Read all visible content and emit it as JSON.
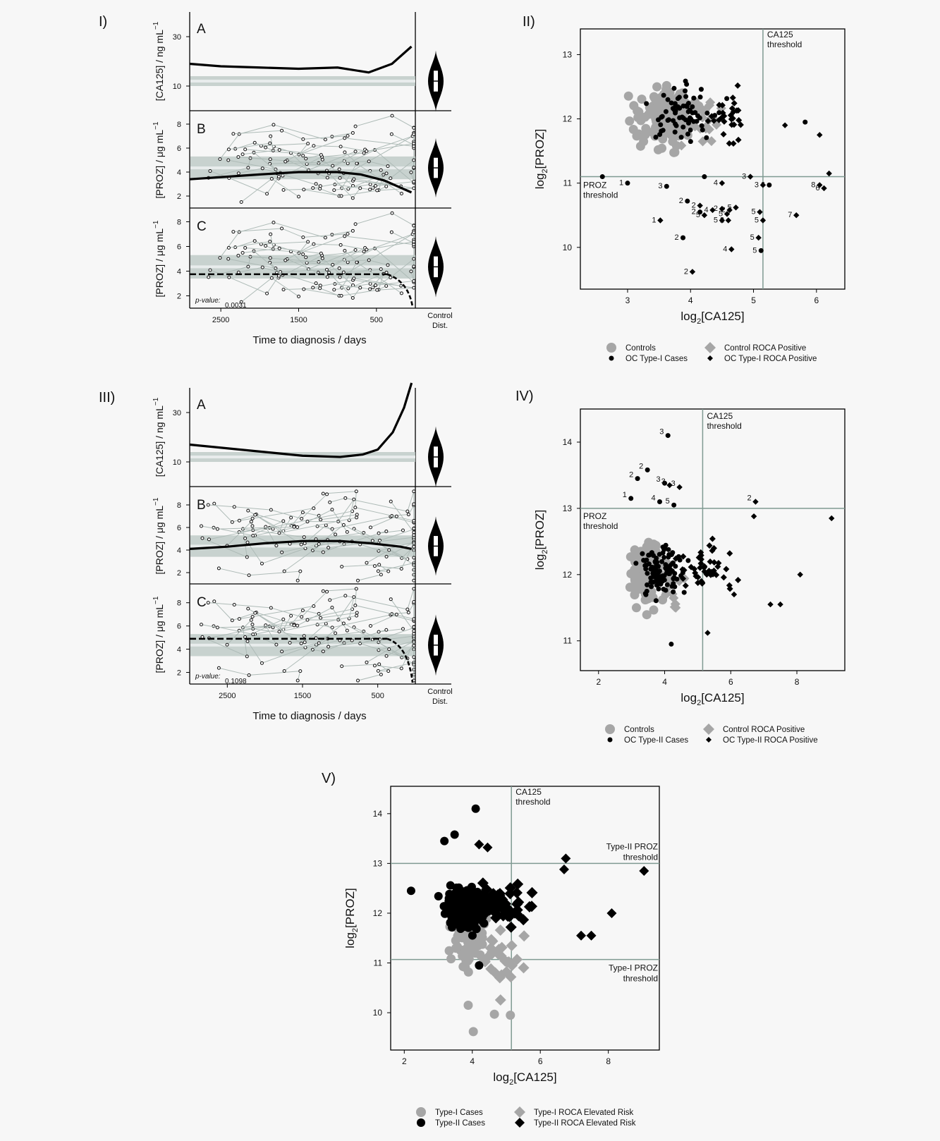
{
  "figure": {
    "panel_labels": [
      "I)",
      "II)",
      "III)",
      "IV)",
      "V)"
    ],
    "subpanel_labels": [
      "A",
      "B",
      "C"
    ],
    "x_axis_label": "Time to diagnosis / days",
    "y_labels": {
      "ca125": "[CA125] / ng mL",
      "proz": "[PROZ] / μg mL",
      "sup": "−1"
    },
    "control_dist_label": [
      "Control",
      "Dist."
    ],
    "pvalue_label": "p-value:",
    "scatter_x_label": "log",
    "scatter_y_label": "log",
    "log_sub": "2",
    "ca125_bracket": "[CA125]",
    "proz_bracket": "[PROZ]",
    "thresholds": {
      "ca125": [
        "CA125",
        "threshold"
      ],
      "proz": [
        "PROZ",
        "threshold"
      ],
      "type2_proz": [
        "Type-II PROZ",
        "threshold"
      ],
      "type1_proz": [
        "Type-I PROZ",
        "threshold"
      ]
    },
    "legends": {
      "II": [
        "Controls",
        "Control ROCA Positive",
        "OC Type-I Cases",
        "OC Type-I ROCA Positive"
      ],
      "IV": [
        "Controls",
        "Control ROCA Positive",
        "OC Type-II Cases",
        "OC Type-II ROCA Positive"
      ],
      "V": [
        "Type-I Cases",
        "Type-I ROCA Elevated Risk",
        "Type-II Cases",
        "Type-II ROCA Elevated Risk"
      ]
    },
    "colors": {
      "gray": "#a6a6a6",
      "black": "#111111",
      "band": "#bfcbc8",
      "thresh": "#7f9a92",
      "thin": "#aebbb7"
    }
  },
  "chart_data": [
    {
      "panel": "I",
      "type": "line",
      "x_range_days": [
        2900,
        0
      ],
      "x_ticks": [
        2500,
        1500,
        500
      ],
      "A": {
        "ylabel": "[CA125] / ng mL-1",
        "y_ticks": [
          10,
          30
        ],
        "y_range": [
          0,
          40
        ],
        "curve": [
          [
            2900,
            19
          ],
          [
            2500,
            18
          ],
          [
            2000,
            17.5
          ],
          [
            1500,
            17
          ],
          [
            1000,
            17.5
          ],
          [
            600,
            15.5
          ],
          [
            300,
            19
          ],
          [
            50,
            26
          ]
        ],
        "control_band": [
          10,
          14
        ]
      },
      "B": {
        "ylabel": "[PROZ] / μg mL-1",
        "y_ticks": [
          2,
          4,
          6,
          8
        ],
        "y_range": [
          1,
          9
        ],
        "curve": [
          [
            2900,
            3.4
          ],
          [
            2000,
            3.8
          ],
          [
            1500,
            4.0
          ],
          [
            1000,
            4.0
          ],
          [
            700,
            3.8
          ],
          [
            400,
            3.3
          ],
          [
            50,
            2.3
          ]
        ],
        "control_band": [
          3.4,
          5.3
        ]
      },
      "C": {
        "ylabel": "[PROZ] / μg mL-1",
        "y_ticks": [
          2,
          4,
          6,
          8
        ],
        "y_range": [
          1,
          9
        ],
        "level": 3.75,
        "p_value": "0.0031"
      }
    },
    {
      "panel": "III",
      "type": "line",
      "x_range_days": [
        3000,
        0
      ],
      "x_ticks": [
        2500,
        1500,
        500
      ],
      "A": {
        "ylabel": "[CA125] / ng mL-1",
        "y_ticks": [
          10,
          30
        ],
        "y_range": [
          0,
          40
        ],
        "curve": [
          [
            3000,
            17
          ],
          [
            2500,
            15.5
          ],
          [
            2000,
            14
          ],
          [
            1500,
            12.5
          ],
          [
            1000,
            12
          ],
          [
            700,
            13
          ],
          [
            500,
            15
          ],
          [
            300,
            22
          ],
          [
            150,
            32
          ],
          [
            50,
            42
          ]
        ],
        "control_band": [
          10,
          14
        ]
      },
      "B": {
        "ylabel": "[PROZ] / μg mL-1",
        "y_ticks": [
          2,
          4,
          6,
          8
        ],
        "y_range": [
          1,
          9.5
        ],
        "curve": [
          [
            3000,
            4.1
          ],
          [
            2500,
            4.3
          ],
          [
            2000,
            4.6
          ],
          [
            1500,
            4.8
          ],
          [
            1000,
            4.8
          ],
          [
            600,
            4.6
          ],
          [
            200,
            4.3
          ],
          [
            50,
            4.1
          ]
        ],
        "control_band": [
          3.4,
          5.3
        ]
      },
      "C": {
        "ylabel": "[PROZ] / μg mL-1",
        "y_ticks": [
          2,
          4,
          6,
          8
        ],
        "y_range": [
          1,
          9.5
        ],
        "level": 4.9,
        "p_value": "0.1098"
      }
    },
    {
      "panel": "II",
      "type": "scatter",
      "xlabel": "log2[CA125]",
      "ylabel": "log2[PROZ]",
      "x_ticks": [
        3,
        4,
        5,
        6
      ],
      "y_ticks": [
        10,
        11,
        12,
        13
      ],
      "xlim": [
        2.25,
        6.45
      ],
      "ylim": [
        9.35,
        13.4
      ],
      "ca125_threshold": 5.15,
      "proz_threshold": 11.1,
      "cases": [
        {
          "x": 2.6,
          "y": 11.1,
          "s": "c"
        },
        {
          "x": 3.0,
          "y": 11.0,
          "s": "c",
          "n": "1"
        },
        {
          "x": 3.62,
          "y": 10.95,
          "s": "c",
          "n": "3"
        },
        {
          "x": 4.22,
          "y": 11.1,
          "s": "c"
        },
        {
          "x": 4.5,
          "y": 11.0,
          "s": "d",
          "n": "4"
        },
        {
          "x": 4.95,
          "y": 11.1,
          "s": "d",
          "n": "3"
        },
        {
          "x": 5.15,
          "y": 10.97,
          "s": "d",
          "n": "3"
        },
        {
          "x": 5.25,
          "y": 10.97,
          "s": "c",
          "n": "6"
        },
        {
          "x": 3.95,
          "y": 10.72,
          "s": "c",
          "n": "2"
        },
        {
          "x": 4.15,
          "y": 10.65,
          "s": "d",
          "n": "2"
        },
        {
          "x": 4.15,
          "y": 10.55,
          "s": "c",
          "n": "2"
        },
        {
          "x": 4.35,
          "y": 10.58,
          "s": "d",
          "n": "4"
        },
        {
          "x": 4.5,
          "y": 10.6,
          "s": "d",
          "n": "2"
        },
        {
          "x": 4.62,
          "y": 10.58,
          "s": "d",
          "n": "2"
        },
        {
          "x": 4.72,
          "y": 10.62,
          "s": "d",
          "n": "5"
        },
        {
          "x": 4.58,
          "y": 10.52,
          "s": "d",
          "n": "5"
        },
        {
          "x": 4.22,
          "y": 10.5,
          "s": "d",
          "n": "5"
        },
        {
          "x": 4.5,
          "y": 10.42,
          "s": "d",
          "n": "5"
        },
        {
          "x": 4.6,
          "y": 10.42,
          "s": "d",
          "n": "2"
        },
        {
          "x": 3.52,
          "y": 10.42,
          "s": "d",
          "n": "1"
        },
        {
          "x": 5.1,
          "y": 10.55,
          "s": "d",
          "n": "5"
        },
        {
          "x": 5.15,
          "y": 10.42,
          "s": "d",
          "n": "5"
        },
        {
          "x": 5.68,
          "y": 10.5,
          "s": "d",
          "n": "7"
        },
        {
          "x": 3.88,
          "y": 10.15,
          "s": "c",
          "n": "2"
        },
        {
          "x": 5.08,
          "y": 10.15,
          "s": "d",
          "n": "5"
        },
        {
          "x": 5.12,
          "y": 9.95,
          "s": "c",
          "n": "5"
        },
        {
          "x": 4.65,
          "y": 9.97,
          "s": "d",
          "n": "4"
        },
        {
          "x": 4.03,
          "y": 9.62,
          "s": "d",
          "n": "2"
        },
        {
          "x": 6.05,
          "y": 10.97,
          "s": "d",
          "n": "8"
        },
        {
          "x": 6.12,
          "y": 10.92,
          "s": "d",
          "n": "6"
        },
        {
          "x": 6.2,
          "y": 11.15,
          "s": "d"
        },
        {
          "x": 6.05,
          "y": 11.75,
          "s": "d"
        },
        {
          "x": 5.82,
          "y": 11.95,
          "s": "c"
        },
        {
          "x": 5.5,
          "y": 11.9,
          "s": "d"
        }
      ]
    },
    {
      "panel": "IV",
      "type": "scatter",
      "xlabel": "log2[CA125]",
      "ylabel": "log2[PROZ]",
      "x_ticks": [
        2,
        4,
        6,
        8
      ],
      "y_ticks": [
        11,
        12,
        13,
        14
      ],
      "xlim": [
        1.45,
        9.45
      ],
      "ylim": [
        10.55,
        14.5
      ],
      "ca125_threshold": 5.15,
      "proz_threshold": 13.0,
      "cases": [
        {
          "x": 4.1,
          "y": 14.1,
          "s": "c",
          "n": "3"
        },
        {
          "x": 3.48,
          "y": 13.58,
          "s": "c",
          "n": "2"
        },
        {
          "x": 3.18,
          "y": 13.45,
          "s": "c",
          "n": "2"
        },
        {
          "x": 4.0,
          "y": 13.38,
          "s": "c",
          "n": "3"
        },
        {
          "x": 4.15,
          "y": 13.35,
          "s": "d",
          "n": "3"
        },
        {
          "x": 4.45,
          "y": 13.32,
          "s": "d",
          "n": "3"
        },
        {
          "x": 2.98,
          "y": 13.15,
          "s": "c",
          "n": "1"
        },
        {
          "x": 3.85,
          "y": 13.1,
          "s": "c",
          "n": "4"
        },
        {
          "x": 4.28,
          "y": 13.05,
          "s": "c",
          "n": "5"
        },
        {
          "x": 6.75,
          "y": 13.1,
          "s": "d",
          "n": "2"
        },
        {
          "x": 6.7,
          "y": 12.88,
          "s": "d"
        },
        {
          "x": 9.05,
          "y": 12.85,
          "s": "d"
        },
        {
          "x": 8.1,
          "y": 12.0,
          "s": "d"
        },
        {
          "x": 7.5,
          "y": 11.55,
          "s": "d"
        },
        {
          "x": 7.2,
          "y": 11.55,
          "s": "d"
        },
        {
          "x": 6.1,
          "y": 11.7,
          "s": "d"
        },
        {
          "x": 5.3,
          "y": 11.12,
          "s": "d"
        },
        {
          "x": 4.2,
          "y": 10.95,
          "s": "c"
        }
      ]
    },
    {
      "panel": "V",
      "type": "scatter",
      "xlabel": "log2[CA125]",
      "ylabel": "log2[PROZ]",
      "x_ticks": [
        2,
        4,
        6,
        8
      ],
      "y_ticks": [
        10,
        11,
        12,
        13,
        14
      ],
      "xlim": [
        1.6,
        9.5
      ],
      "ylim": [
        9.25,
        14.55
      ],
      "ca125_threshold": 5.15,
      "type2_proz_threshold": 13.0,
      "type1_proz_threshold": 11.07,
      "series": [
        {
          "name": "Type-I Cases",
          "marker": "gray-circle"
        },
        {
          "name": "Type-I ROCA Elevated Risk",
          "marker": "gray-diamond"
        },
        {
          "name": "Type-II Cases",
          "marker": "black-circle"
        },
        {
          "name": "Type-II ROCA Elevated Risk",
          "marker": "black-diamond"
        }
      ]
    }
  ]
}
